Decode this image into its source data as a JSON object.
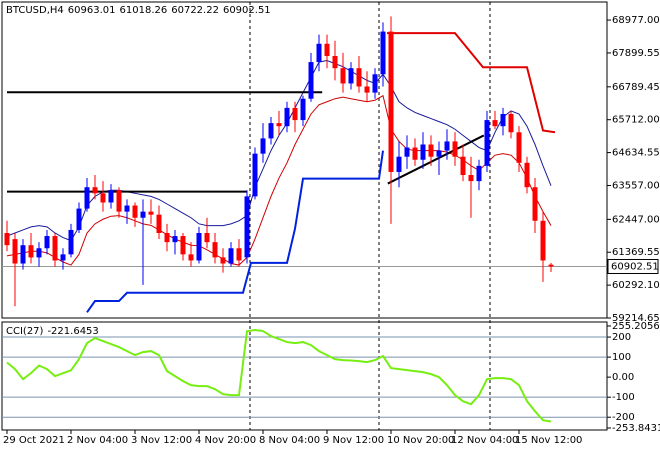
{
  "chart_data": {
    "type": "candlestick",
    "title": "BTCUSD,H4",
    "categories": [
      "29 Oct 2021",
      null,
      null,
      null,
      null,
      null,
      null,
      null,
      "2 Nov 04:00",
      null,
      null,
      null,
      null,
      null,
      null,
      null,
      "3 Nov 12:00",
      null,
      null,
      null,
      null,
      null,
      null,
      null,
      "4 Nov 20:00",
      null,
      null,
      null,
      null,
      null,
      null,
      null,
      "8 Nov 04:00",
      null,
      null,
      null,
      null,
      null,
      null,
      null,
      "9 Nov 12:00",
      null,
      null,
      null,
      null,
      null,
      null,
      null,
      "10 Nov 20:00",
      null,
      null,
      null,
      null,
      null,
      null,
      null,
      "12 Nov 04:00",
      null,
      null,
      null,
      null,
      null,
      null,
      null,
      "15 Nov 12:00",
      null,
      null,
      null,
      null
    ],
    "open": [
      62000,
      61800,
      61000,
      61600,
      61200,
      61500,
      61900,
      61100,
      61300,
      62100,
      62800,
      63500,
      63300,
      63000,
      63400,
      62700,
      62900,
      62500,
      62700,
      62600,
      62000,
      61700,
      61900,
      61300,
      61100,
      62000,
      61700,
      61200,
      61000,
      61500,
      61200,
      63200,
      64600,
      65100,
      65600,
      65500,
      66100,
      65700,
      66400,
      67600,
      68200,
      67800,
      67400,
      66900,
      67400,
      66800,
      66600,
      67200,
      68600,
      64000,
      64500,
      64800,
      64400,
      64900,
      64500,
      64700,
      65000,
      64500,
      63900,
      63700,
      64200,
      65700,
      65500,
      65900,
      65300,
      64300,
      63500,
      62400,
      60963.01
    ],
    "high": [
      62400,
      62000,
      61800,
      62000,
      61700,
      62100,
      62000,
      61500,
      62300,
      63000,
      63800,
      63900,
      63700,
      63600,
      63500,
      63100,
      63000,
      63100,
      63100,
      62900,
      62300,
      62100,
      62000,
      61700,
      62200,
      62500,
      62000,
      61500,
      61700,
      61800,
      63400,
      64800,
      65600,
      65800,
      66000,
      66300,
      66300,
      66500,
      67900,
      68500,
      68500,
      68300,
      67900,
      67600,
      67800,
      67300,
      67400,
      68900,
      69100,
      65000,
      65200,
      65100,
      65300,
      65200,
      65000,
      65400,
      65300,
      64900,
      64500,
      64400,
      66000,
      66000,
      66100,
      66000,
      65500,
      64500,
      63800,
      62700,
      61018.26
    ],
    "low": [
      61400,
      59600,
      60800,
      61000,
      60900,
      61300,
      60900,
      60800,
      61200,
      62000,
      62700,
      63100,
      62700,
      62800,
      62500,
      62300,
      62200,
      60300,
      62300,
      61800,
      61400,
      61300,
      61100,
      60900,
      61000,
      61500,
      61000,
      60700,
      60900,
      60900,
      61000,
      63100,
      64300,
      64900,
      65200,
      65300,
      65300,
      65500,
      66300,
      67300,
      67400,
      67000,
      66600,
      66700,
      66600,
      66300,
      66400,
      66800,
      62300,
      63500,
      64100,
      64200,
      64100,
      64200,
      63900,
      64400,
      64200,
      63700,
      62500,
      63400,
      64000,
      65400,
      65200,
      65100,
      64000,
      63300,
      62000,
      60400,
      60722.22
    ],
    "close": [
      61600,
      61000,
      61600,
      61200,
      61500,
      61900,
      61100,
      61300,
      62100,
      62800,
      63500,
      63300,
      63000,
      63400,
      62700,
      62900,
      62500,
      62700,
      62600,
      62000,
      61700,
      61900,
      61300,
      61100,
      62000,
      61700,
      61200,
      61000,
      61500,
      61100,
      63200,
      64600,
      65100,
      65600,
      65500,
      66100,
      65700,
      66400,
      67600,
      68200,
      67800,
      67400,
      66900,
      67400,
      66800,
      66600,
      67200,
      68600,
      64000,
      64500,
      64800,
      64400,
      64900,
      64500,
      64700,
      65000,
      64500,
      63900,
      63700,
      64200,
      65700,
      65500,
      65900,
      65300,
      64300,
      63500,
      62400,
      61100,
      60902.51
    ],
    "up_color": "#0000ff",
    "down_color": "#ff0000",
    "ylim": [
      59214.65,
      69569
    ],
    "yticks": [
      {
        "value": 68977,
        "label": "68977.00"
      },
      67899.55,
      66789.45,
      {
        "value": 65712,
        "label": "65712.00"
      },
      64634.55,
      {
        "value": 63557,
        "label": "63557.00"
      },
      {
        "value": 62447,
        "label": "62447.00"
      },
      61369.55,
      {
        "value": 60292.1,
        "label": "60292.10"
      },
      59214.65
    ],
    "overlays": [
      {
        "color": "#1a1a9a",
        "width": 1,
        "values": [
          61900,
          62000,
          62100,
          62200,
          62240,
          62200,
          62000,
          61850,
          61750,
          62200,
          62900,
          63200,
          63350,
          63400,
          63400,
          63350,
          63300,
          63250,
          63200,
          63100,
          62950,
          62800,
          62650,
          62500,
          62300,
          62240,
          62240,
          62240,
          62300,
          62400,
          62570,
          63500,
          64100,
          64700,
          65200,
          65600,
          66100,
          66600,
          67100,
          67600,
          67650,
          67550,
          67450,
          67300,
          67150,
          67000,
          66900,
          67200,
          66800,
          66300,
          66100,
          65950,
          65850,
          65750,
          65650,
          65550,
          65400,
          65200,
          65000,
          64800,
          64700,
          65300,
          65800,
          66000,
          65900,
          65500,
          64900,
          64200,
          63550
        ]
      },
      {
        "color": "#d00000",
        "width": 1,
        "values": [
          61250,
          61300,
          61350,
          61400,
          61400,
          61350,
          61200,
          61050,
          60950,
          61300,
          62000,
          62300,
          62450,
          62550,
          62570,
          62500,
          62400,
          62300,
          62250,
          62100,
          61950,
          61800,
          61700,
          61600,
          61580,
          61450,
          61300,
          61150,
          61000,
          60950,
          61200,
          61800,
          62500,
          63200,
          63800,
          64300,
          64900,
          65400,
          65900,
          66200,
          66300,
          66400,
          66450,
          66400,
          66350,
          66300,
          66350,
          66500,
          65400,
          65000,
          64750,
          64700,
          64700,
          64700,
          64700,
          64650,
          64550,
          64400,
          64200,
          64050,
          64300,
          64550,
          64600,
          64550,
          64300,
          63800,
          63200,
          62700,
          62240
        ]
      },
      {
        "color": "#0022dd",
        "width": 2,
        "x": [
          10,
          11,
          14,
          15,
          29.5,
          30.5,
          35,
          36,
          37,
          46.5,
          47
        ],
        "values": [
          59400,
          59770,
          59770,
          60040,
          60040,
          61020,
          61020,
          62140,
          63780,
          63780,
          64700
        ]
      },
      {
        "color": "#e00000",
        "width": 2,
        "x": [
          47.5,
          56,
          59.5,
          65,
          67,
          68.5
        ],
        "values": [
          68550,
          68550,
          67430,
          67430,
          65360,
          65300
        ]
      },
      {
        "color": "#000000",
        "width": 2,
        "x": [
          0,
          39.4
        ],
        "values": [
          66610,
          66610
        ]
      },
      {
        "color": "#000000",
        "width": 2,
        "x": [
          0,
          30
        ],
        "values": [
          63356,
          63356
        ]
      },
      {
        "color": "#000000",
        "width": 2,
        "x": [
          47.6,
          59.6
        ],
        "values": [
          63620,
          65197
        ]
      }
    ],
    "indicator": {
      "type": "line",
      "label": "CCI(27)",
      "color": "#77ee11",
      "values": [
        73,
        40,
        -10,
        20,
        58,
        40,
        5,
        20,
        34,
        90,
        170,
        195,
        180,
        165,
        150,
        130,
        110,
        125,
        130,
        110,
        30,
        5,
        -20,
        -40,
        -45,
        -45,
        -60,
        -85,
        -90,
        -90,
        229,
        235,
        230,
        205,
        190,
        175,
        170,
        175,
        160,
        130,
        110,
        90,
        85,
        83,
        80,
        75,
        85,
        105,
        45,
        40,
        35,
        30,
        25,
        15,
        0,
        -40,
        -90,
        -120,
        -135,
        -90,
        -10,
        -5,
        -5,
        -10,
        -40,
        -120,
        -170,
        -215,
        -221.6453
      ],
      "ylim": [
        -253.8431,
        255.2056
      ],
      "yticks": [
        255.2056,
        200,
        100,
        {
          "value": 0,
          "label": "0.00"
        },
        -100,
        -200,
        -253.8431
      ]
    }
  }
}
